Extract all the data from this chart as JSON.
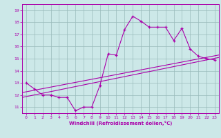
{
  "title": "",
  "xlabel": "Windchill (Refroidissement éolien,°C)",
  "ylabel": "",
  "bg_color": "#cce8e8",
  "line_color": "#aa00aa",
  "grid_color": "#99bbbb",
  "xlim": [
    -0.5,
    23.5
  ],
  "ylim": [
    10.5,
    19.5
  ],
  "yticks": [
    11,
    12,
    13,
    14,
    15,
    16,
    17,
    18,
    19
  ],
  "xticks": [
    0,
    1,
    2,
    3,
    4,
    5,
    6,
    7,
    8,
    9,
    10,
    11,
    12,
    13,
    14,
    15,
    16,
    17,
    18,
    19,
    20,
    21,
    22,
    23
  ],
  "curve1_x": [
    0,
    1,
    2,
    3,
    4,
    5,
    6,
    7,
    8,
    9,
    10,
    11,
    12,
    13,
    14,
    15,
    16,
    17,
    18,
    19,
    20,
    21,
    22,
    23
  ],
  "curve1_y": [
    13.0,
    12.5,
    12.0,
    12.0,
    11.8,
    11.8,
    10.7,
    11.0,
    11.0,
    12.8,
    15.4,
    15.3,
    17.4,
    18.5,
    18.1,
    17.6,
    17.6,
    17.6,
    16.5,
    17.5,
    15.8,
    15.2,
    15.0,
    14.9
  ],
  "line2_x": [
    -0.5,
    23.5
  ],
  "line2_y": [
    12.2,
    15.3
  ],
  "line3_x": [
    -0.5,
    23.5
  ],
  "line3_y": [
    11.8,
    15.1
  ]
}
